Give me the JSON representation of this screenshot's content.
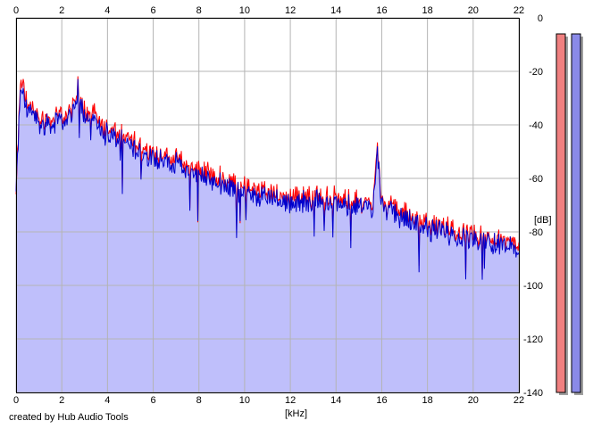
{
  "footer_text": "created by Hub Audio Tools",
  "colors": {
    "left_channel": "#ff0000",
    "right_channel": "#0000cc",
    "fill": "#bfbffb",
    "grid": "#b4b4b4",
    "meter_left": "#f08080",
    "meter_right": "#8a8ae8"
  },
  "chart_data": {
    "type": "area",
    "xlabel": "[kHz]",
    "ylabel": "[dB]",
    "xlim": [
      0,
      22
    ],
    "ylim": [
      -140,
      0
    ],
    "x_ticks": [
      "0",
      "2",
      "4",
      "6",
      "8",
      "10",
      "12",
      "14",
      "16",
      "18",
      "20",
      "22"
    ],
    "y_ticks": [
      "0",
      "-20",
      "-40",
      "-60",
      "-80",
      "-100",
      "-120",
      "-140"
    ],
    "grid": true,
    "series": [
      {
        "channel": "left",
        "x": [
          0,
          0.2,
          0.5,
          1.0,
          1.5,
          2.0,
          2.5,
          2.7,
          3.0,
          3.5,
          4.0,
          5.0,
          6.0,
          7.0,
          8.0,
          9.0,
          10.0,
          11.0,
          12.0,
          13.0,
          14.0,
          15.0,
          15.6,
          15.8,
          16.0,
          16.5,
          17.0,
          18.0,
          19.0,
          20.0,
          21.0,
          22.0
        ],
        "values": [
          -65,
          -23,
          -32,
          -38,
          -38,
          -37,
          -34,
          -26,
          -34,
          -37,
          -42,
          -46,
          -50,
          -53,
          -57,
          -60,
          -63,
          -65,
          -67,
          -67,
          -67,
          -69,
          -69,
          -49,
          -69,
          -71,
          -73,
          -77,
          -79,
          -81,
          -83,
          -85
        ]
      },
      {
        "channel": "right",
        "x": [
          0,
          0.2,
          0.5,
          1.0,
          1.5,
          2.0,
          2.5,
          2.7,
          3.0,
          3.5,
          4.0,
          5.0,
          6.0,
          7.0,
          8.0,
          9.0,
          10.0,
          11.0,
          12.0,
          13.0,
          14.0,
          15.0,
          15.6,
          15.8,
          16.0,
          16.5,
          17.0,
          18.0,
          19.0,
          20.0,
          21.0,
          22.0
        ],
        "values": [
          -65,
          -25,
          -34,
          -40,
          -40,
          -39,
          -36,
          -27,
          -36,
          -39,
          -44,
          -48,
          -52,
          -55,
          -59,
          -62,
          -65,
          -67,
          -69,
          -69,
          -69,
          -71,
          -71,
          -50,
          -71,
          -73,
          -75,
          -79,
          -81,
          -83,
          -85,
          -87
        ]
      }
    ],
    "meters": [
      {
        "channel": "left",
        "level_db": -6
      },
      {
        "channel": "right",
        "level_db": -6
      }
    ]
  }
}
